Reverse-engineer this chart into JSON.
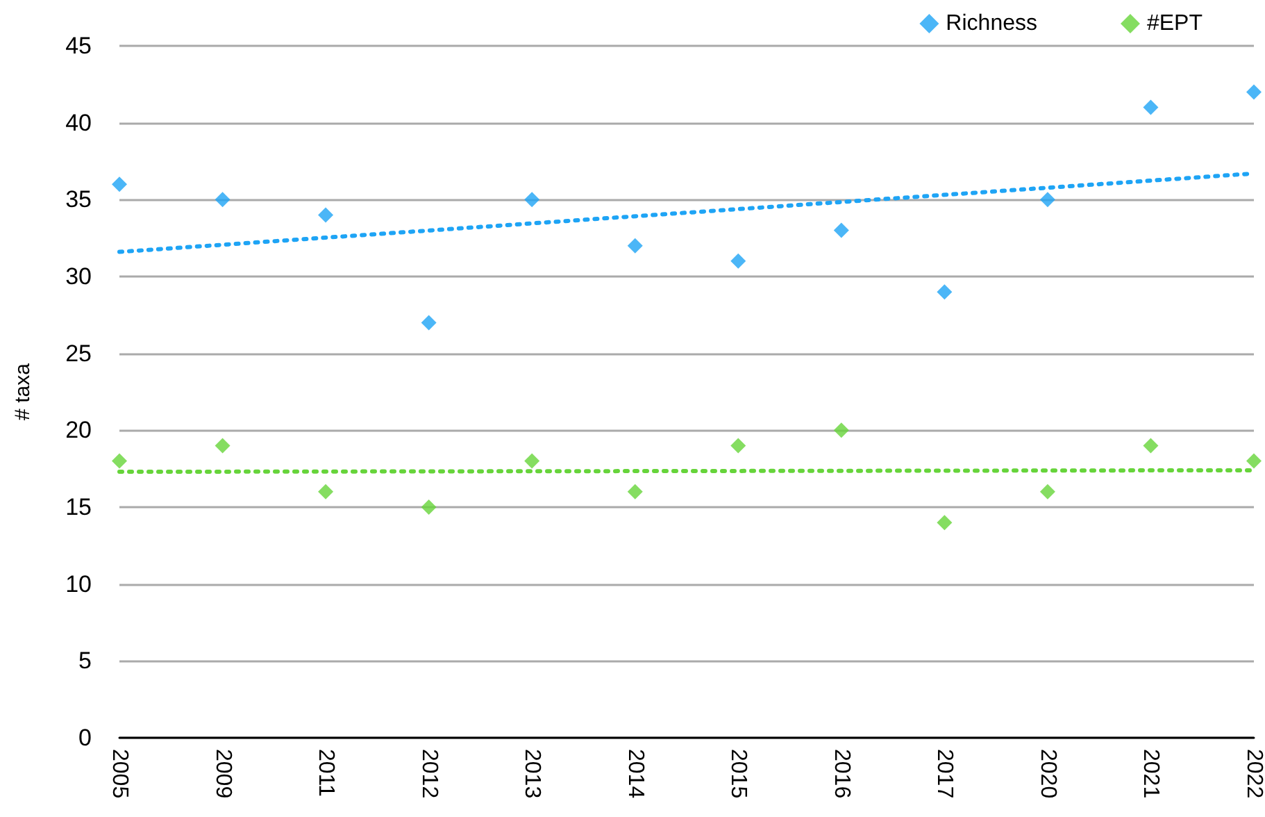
{
  "chart_data": {
    "type": "scatter",
    "ylabel": "# taxa",
    "categories": [
      "2005",
      "2009",
      "2011",
      "2012",
      "2013",
      "2014",
      "2015",
      "2016",
      "2017",
      "2020",
      "2021",
      "2022"
    ],
    "series": [
      {
        "name": "Richness",
        "color": "#1ea4f5",
        "values": [
          36,
          35,
          34,
          27,
          35,
          32,
          31,
          33,
          29,
          35,
          41,
          42
        ]
      },
      {
        "name": "#EPT",
        "color": "#66d43a",
        "values": [
          18,
          19,
          16,
          15,
          18,
          16,
          19,
          20,
          14,
          16,
          19,
          18
        ]
      },
      {
        "type": "line",
        "color": "#1ea4f5",
        "line_style": "dotted",
        "marker": "none",
        "values": [
          31.6,
          null,
          null,
          null,
          null,
          null,
          null,
          null,
          null,
          null,
          null,
          36.7
        ]
      },
      {
        "type": "line",
        "color": "#66d43a",
        "line_style": "dotted",
        "marker": "none",
        "values": [
          17.3,
          null,
          null,
          null,
          null,
          null,
          null,
          null,
          null,
          null,
          null,
          17.4
        ]
      }
    ],
    "ylim": [
      0,
      45
    ],
    "yticks": [
      0,
      5,
      10,
      15,
      20,
      25,
      30,
      35,
      40,
      45
    ],
    "grid": "y",
    "legend": "top right",
    "marker": "diamond"
  }
}
